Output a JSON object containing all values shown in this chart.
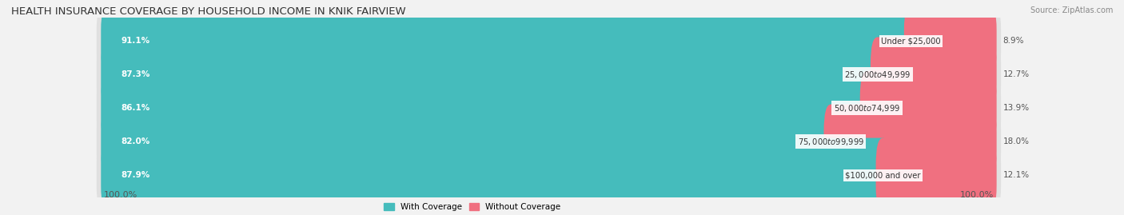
{
  "title": "HEALTH INSURANCE COVERAGE BY HOUSEHOLD INCOME IN KNIK FAIRVIEW",
  "source": "Source: ZipAtlas.com",
  "categories": [
    "Under $25,000",
    "$25,000 to $49,999",
    "$50,000 to $74,999",
    "$75,000 to $99,999",
    "$100,000 and over"
  ],
  "with_coverage": [
    91.1,
    87.3,
    86.1,
    82.0,
    87.9
  ],
  "without_coverage": [
    8.9,
    12.7,
    13.9,
    18.0,
    12.1
  ],
  "coverage_color": "#45BCBC",
  "no_coverage_color": "#F07080",
  "bg_color": "#f2f2f2",
  "bar_bg_color": "#e0e0e0",
  "left_label": "100.0%",
  "right_label": "100.0%",
  "bar_height": 0.62,
  "title_fontsize": 9.5,
  "label_fontsize": 7.5,
  "category_fontsize": 7.2,
  "tick_fontsize": 8.0,
  "total_width": 100
}
